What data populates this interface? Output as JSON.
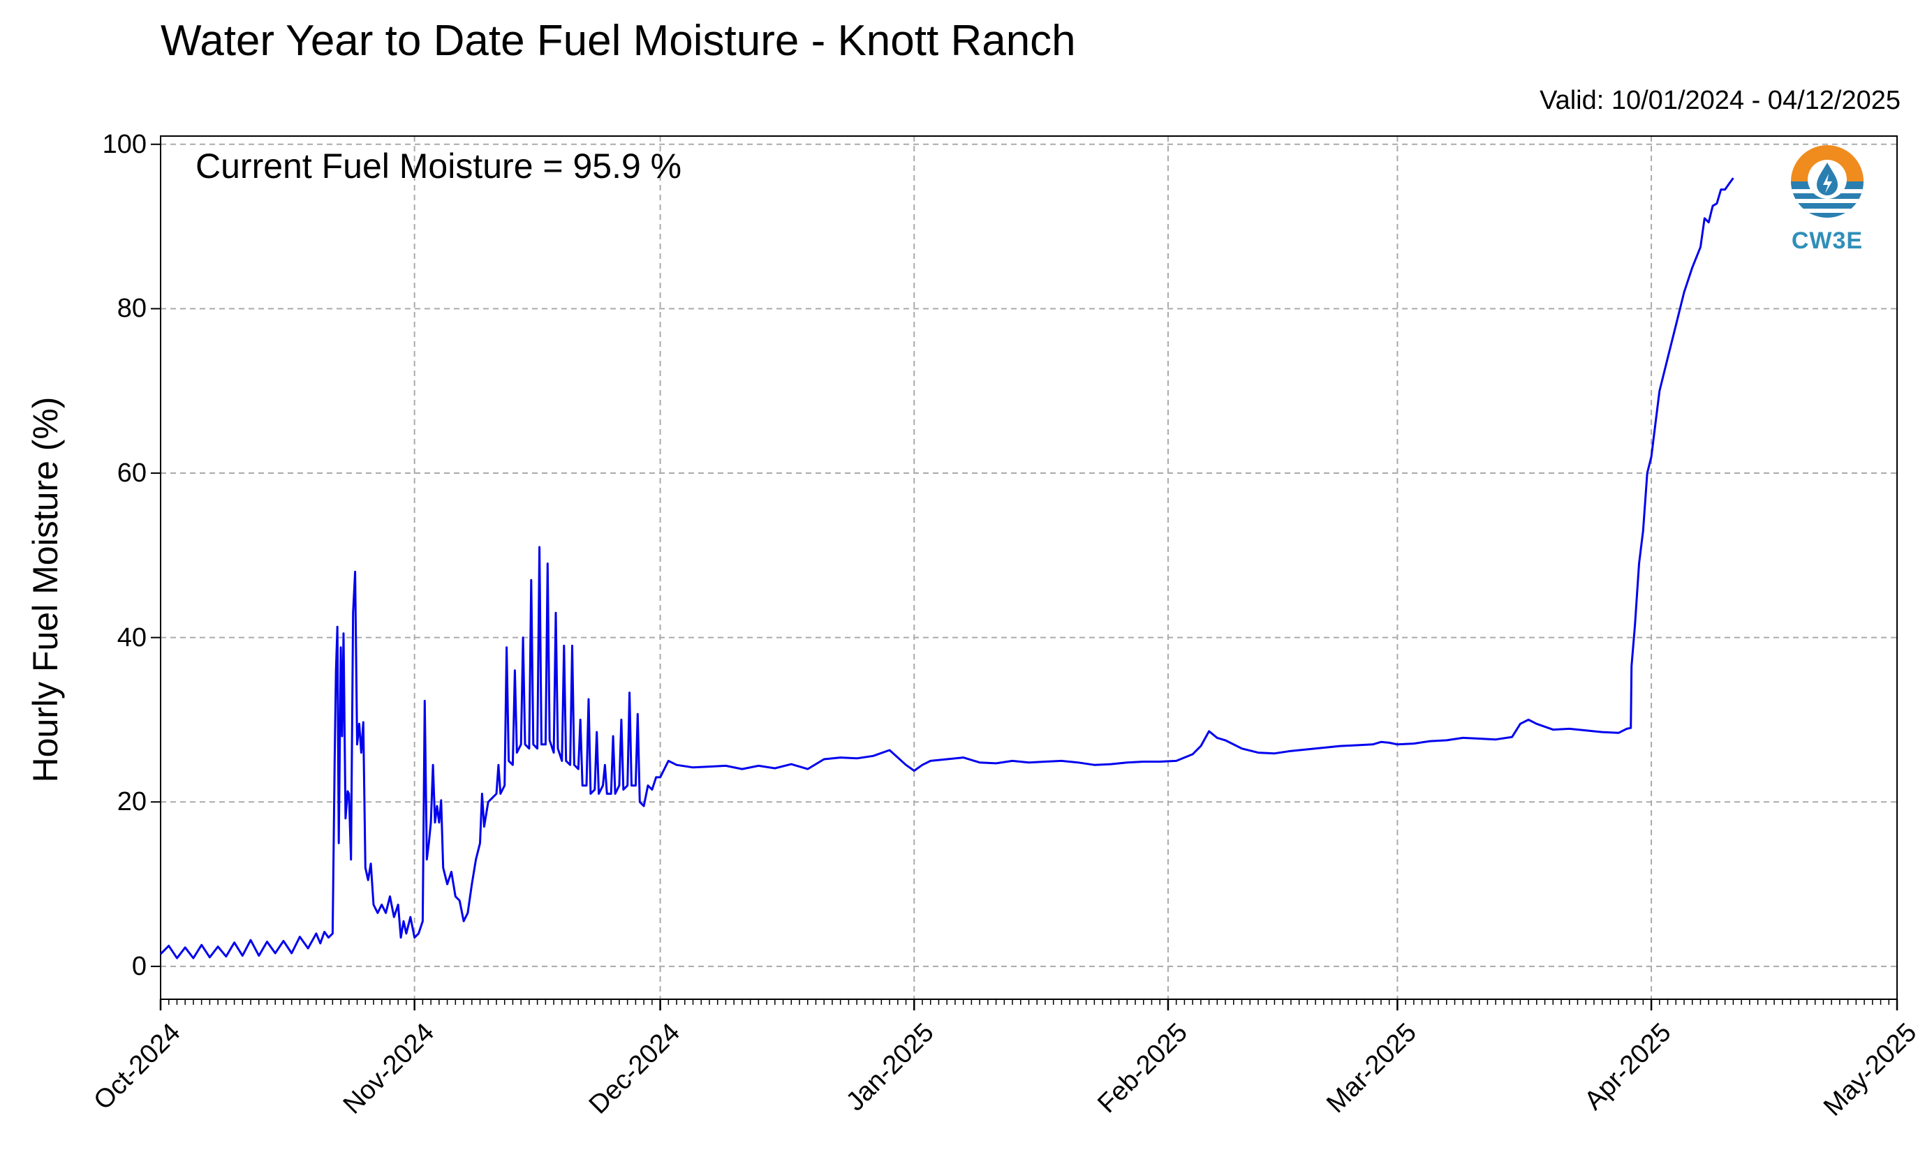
{
  "chart_data": {
    "type": "line",
    "title": "Water Year to Date Fuel Moisture - Knott Ranch",
    "subtitle": "Valid: 10/01/2024 - 04/12/2025",
    "annotation": "Current Fuel Moisture = 95.9 %",
    "xlabel": "",
    "ylabel": "Hourly Fuel Moisture (%)",
    "xlim": [
      "2024-10-01",
      "2025-05-01"
    ],
    "ylim": [
      -4,
      101
    ],
    "yticks": [
      0,
      20,
      40,
      60,
      80,
      100
    ],
    "xticks": [
      {
        "date": "2024-10-01",
        "label": "Oct-2024"
      },
      {
        "date": "2024-11-01",
        "label": "Nov-2024"
      },
      {
        "date": "2024-12-01",
        "label": "Dec-2024"
      },
      {
        "date": "2025-01-01",
        "label": "Jan-2025"
      },
      {
        "date": "2025-02-01",
        "label": "Feb-2025"
      },
      {
        "date": "2025-03-01",
        "label": "Mar-2025"
      },
      {
        "date": "2025-04-01",
        "label": "Apr-2025"
      },
      {
        "date": "2025-05-01",
        "label": "May-2025"
      }
    ],
    "grid": true,
    "line_color": "#0000ee",
    "series": [
      {
        "points": [
          [
            "2024-10-01",
            1.5
          ],
          [
            "2024-10-02",
            2.5
          ],
          [
            "2024-10-03",
            1.0
          ],
          [
            "2024-10-04",
            2.3
          ],
          [
            "2024-10-05",
            1.0
          ],
          [
            "2024-10-06",
            2.6
          ],
          [
            "2024-10-07",
            1.1
          ],
          [
            "2024-10-08",
            2.4
          ],
          [
            "2024-10-09",
            1.2
          ],
          [
            "2024-10-10",
            2.9
          ],
          [
            "2024-10-11",
            1.3
          ],
          [
            "2024-10-12",
            3.2
          ],
          [
            "2024-10-13",
            1.3
          ],
          [
            "2024-10-14",
            3.0
          ],
          [
            "2024-10-15",
            1.6
          ],
          [
            "2024-10-16",
            3.1
          ],
          [
            "2024-10-17",
            1.6
          ],
          [
            "2024-10-18",
            3.6
          ],
          [
            "2024-10-19",
            2.2
          ],
          [
            "2024-10-20",
            4.0
          ],
          [
            "2024-10-20T12",
            2.8
          ],
          [
            "2024-10-21",
            4.2
          ],
          [
            "2024-10-21T12",
            3.5
          ],
          [
            "2024-10-22",
            4.0
          ],
          [
            "2024-10-22T06",
            25
          ],
          [
            "2024-10-22T10",
            36
          ],
          [
            "2024-10-22T14",
            41.3
          ],
          [
            "2024-10-22T18",
            15
          ],
          [
            "2024-10-23",
            38.8
          ],
          [
            "2024-10-23T04",
            28
          ],
          [
            "2024-10-23T08",
            40.5
          ],
          [
            "2024-10-23T14",
            18
          ],
          [
            "2024-10-23T20",
            21.3
          ],
          [
            "2024-10-24",
            21
          ],
          [
            "2024-10-24T06",
            13
          ],
          [
            "2024-10-24T12",
            43
          ],
          [
            "2024-10-24T18",
            48
          ],
          [
            "2024-10-25",
            27
          ],
          [
            "2024-10-25T06",
            29.5
          ],
          [
            "2024-10-25T12",
            26
          ],
          [
            "2024-10-25T18",
            29.7
          ],
          [
            "2024-10-26",
            12
          ],
          [
            "2024-10-26T08",
            10.5
          ],
          [
            "2024-10-26T16",
            12.5
          ],
          [
            "2024-10-27",
            7.5
          ],
          [
            "2024-10-27T12",
            6.5
          ],
          [
            "2024-10-28",
            7.5
          ],
          [
            "2024-10-28T12",
            6.5
          ],
          [
            "2024-10-29",
            8.5
          ],
          [
            "2024-10-29T12",
            6.0
          ],
          [
            "2024-10-30",
            7.5
          ],
          [
            "2024-10-30T08",
            3.5
          ],
          [
            "2024-10-30T16",
            5.5
          ],
          [
            "2024-10-31",
            4.0
          ],
          [
            "2024-10-31T12",
            6.0
          ],
          [
            "2024-11-01",
            3.5
          ],
          [
            "2024-11-01T12",
            4.0
          ],
          [
            "2024-11-02",
            5.5
          ],
          [
            "2024-11-02T06",
            32.3
          ],
          [
            "2024-11-02T12",
            13
          ],
          [
            "2024-11-02T18",
            15
          ],
          [
            "2024-11-03",
            17.5
          ],
          [
            "2024-11-03T06",
            24.5
          ],
          [
            "2024-11-03T12",
            17.5
          ],
          [
            "2024-11-03T18",
            19.5
          ],
          [
            "2024-11-04",
            17.5
          ],
          [
            "2024-11-04T06",
            20.2
          ],
          [
            "2024-11-04T12",
            12
          ],
          [
            "2024-11-05",
            10
          ],
          [
            "2024-11-05T12",
            11.5
          ],
          [
            "2024-11-06",
            8.5
          ],
          [
            "2024-11-06T12",
            8.0
          ],
          [
            "2024-11-07",
            5.5
          ],
          [
            "2024-11-07T12",
            6.5
          ],
          [
            "2024-11-08",
            10
          ],
          [
            "2024-11-08T12",
            13
          ],
          [
            "2024-11-09",
            15
          ],
          [
            "2024-11-09T06",
            21
          ],
          [
            "2024-11-09T12",
            17
          ],
          [
            "2024-11-10",
            20
          ],
          [
            "2024-11-10T12",
            20.5
          ],
          [
            "2024-11-11",
            21
          ],
          [
            "2024-11-11T06",
            24.5
          ],
          [
            "2024-11-11T12",
            21
          ],
          [
            "2024-11-12",
            22
          ],
          [
            "2024-11-12T06",
            38.8
          ],
          [
            "2024-11-12T12",
            25
          ],
          [
            "2024-11-13",
            24.5
          ],
          [
            "2024-11-13T06",
            36
          ],
          [
            "2024-11-13T12",
            26
          ],
          [
            "2024-11-14",
            27
          ],
          [
            "2024-11-14T06",
            40
          ],
          [
            "2024-11-14T12",
            27
          ],
          [
            "2024-11-15",
            26.5
          ],
          [
            "2024-11-15T06",
            47
          ],
          [
            "2024-11-15T12",
            27
          ],
          [
            "2024-11-16",
            26.5
          ],
          [
            "2024-11-16T06",
            51
          ],
          [
            "2024-11-16T12",
            27
          ],
          [
            "2024-11-17",
            27
          ],
          [
            "2024-11-17T06",
            49
          ],
          [
            "2024-11-17T12",
            27.5
          ],
          [
            "2024-11-18",
            26
          ],
          [
            "2024-11-18T06",
            43
          ],
          [
            "2024-11-18T12",
            26.5
          ],
          [
            "2024-11-19",
            25
          ],
          [
            "2024-11-19T06",
            39
          ],
          [
            "2024-11-19T12",
            25
          ],
          [
            "2024-11-20",
            24.5
          ],
          [
            "2024-11-20T06",
            39
          ],
          [
            "2024-11-20T12",
            24.5
          ],
          [
            "2024-11-21",
            24
          ],
          [
            "2024-11-21T06",
            30
          ],
          [
            "2024-11-21T12",
            22
          ],
          [
            "2024-11-22",
            22
          ],
          [
            "2024-11-22T06",
            32.5
          ],
          [
            "2024-11-22T12",
            21
          ],
          [
            "2024-11-23",
            21.5
          ],
          [
            "2024-11-23T06",
            28.5
          ],
          [
            "2024-11-23T12",
            21
          ],
          [
            "2024-11-24",
            22
          ],
          [
            "2024-11-24T06",
            24.5
          ],
          [
            "2024-11-24T12",
            21
          ],
          [
            "2024-11-25",
            21
          ],
          [
            "2024-11-25T06",
            28
          ],
          [
            "2024-11-25T12",
            21
          ],
          [
            "2024-11-26",
            22
          ],
          [
            "2024-11-26T06",
            30
          ],
          [
            "2024-11-26T12",
            21.5
          ],
          [
            "2024-11-27",
            22
          ],
          [
            "2024-11-27T06",
            33.3
          ],
          [
            "2024-11-27T12",
            22
          ],
          [
            "2024-11-28",
            22
          ],
          [
            "2024-11-28T06",
            30.7
          ],
          [
            "2024-11-28T12",
            20
          ],
          [
            "2024-11-29",
            19.5
          ],
          [
            "2024-11-29T12",
            22
          ],
          [
            "2024-11-30",
            21.5
          ],
          [
            "2024-11-30T12",
            23
          ],
          [
            "2024-12-01",
            23
          ],
          [
            "2024-12-02",
            25
          ],
          [
            "2024-12-03",
            24.5
          ],
          [
            "2024-12-05",
            24.2
          ],
          [
            "2024-12-07",
            24.3
          ],
          [
            "2024-12-09",
            24.4
          ],
          [
            "2024-12-11",
            24.0
          ],
          [
            "2024-12-13",
            24.4
          ],
          [
            "2024-12-15",
            24.1
          ],
          [
            "2024-12-17",
            24.6
          ],
          [
            "2024-12-19",
            24.0
          ],
          [
            "2024-12-21",
            25.2
          ],
          [
            "2024-12-23",
            25.4
          ],
          [
            "2024-12-25",
            25.3
          ],
          [
            "2024-12-27",
            25.6
          ],
          [
            "2024-12-29",
            26.3
          ],
          [
            "2024-12-31",
            24.5
          ],
          [
            "2025-01-01",
            23.8
          ],
          [
            "2025-01-02",
            24.5
          ],
          [
            "2025-01-03",
            25.0
          ],
          [
            "2025-01-05",
            25.2
          ],
          [
            "2025-01-07",
            25.4
          ],
          [
            "2025-01-09",
            24.8
          ],
          [
            "2025-01-11",
            24.7
          ],
          [
            "2025-01-13",
            25.0
          ],
          [
            "2025-01-15",
            24.8
          ],
          [
            "2025-01-17",
            24.9
          ],
          [
            "2025-01-19",
            25.0
          ],
          [
            "2025-01-21",
            24.8
          ],
          [
            "2025-01-23",
            24.5
          ],
          [
            "2025-01-25",
            24.6
          ],
          [
            "2025-01-27",
            24.8
          ],
          [
            "2025-01-29",
            24.9
          ],
          [
            "2025-01-31",
            24.9
          ],
          [
            "2025-02-02",
            25.0
          ],
          [
            "2025-02-04",
            25.8
          ],
          [
            "2025-02-05",
            26.8
          ],
          [
            "2025-02-06",
            28.6
          ],
          [
            "2025-02-07",
            27.8
          ],
          [
            "2025-02-08",
            27.5
          ],
          [
            "2025-02-10",
            26.5
          ],
          [
            "2025-02-12",
            26.0
          ],
          [
            "2025-02-14",
            25.9
          ],
          [
            "2025-02-16",
            26.2
          ],
          [
            "2025-02-18",
            26.4
          ],
          [
            "2025-02-20",
            26.6
          ],
          [
            "2025-02-22",
            26.8
          ],
          [
            "2025-02-24",
            26.9
          ],
          [
            "2025-02-26",
            27.0
          ],
          [
            "2025-02-27",
            27.3
          ],
          [
            "2025-02-28",
            27.2
          ],
          [
            "2025-03-01",
            27.0
          ],
          [
            "2025-03-03",
            27.1
          ],
          [
            "2025-03-05",
            27.4
          ],
          [
            "2025-03-07",
            27.5
          ],
          [
            "2025-03-09",
            27.8
          ],
          [
            "2025-03-11",
            27.7
          ],
          [
            "2025-03-13",
            27.6
          ],
          [
            "2025-03-15",
            27.9
          ],
          [
            "2025-03-16",
            29.5
          ],
          [
            "2025-03-17",
            30.0
          ],
          [
            "2025-03-18",
            29.5
          ],
          [
            "2025-03-20",
            28.8
          ],
          [
            "2025-03-22",
            28.9
          ],
          [
            "2025-03-24",
            28.7
          ],
          [
            "2025-03-26",
            28.5
          ],
          [
            "2025-03-28",
            28.4
          ],
          [
            "2025-03-29",
            28.9
          ],
          [
            "2025-03-29T12",
            29.0
          ],
          [
            "2025-03-29T14",
            36.5
          ],
          [
            "2025-03-30",
            41.5
          ],
          [
            "2025-03-30T12",
            49
          ],
          [
            "2025-03-31",
            53
          ],
          [
            "2025-03-31T12",
            60
          ],
          [
            "2025-04-01",
            62
          ],
          [
            "2025-04-01T12",
            66
          ],
          [
            "2025-04-02",
            70
          ],
          [
            "2025-04-03",
            74
          ],
          [
            "2025-04-04",
            78
          ],
          [
            "2025-04-05",
            82
          ],
          [
            "2025-04-06",
            85
          ],
          [
            "2025-04-07",
            87.5
          ],
          [
            "2025-04-07T12",
            91
          ],
          [
            "2025-04-08",
            90.5
          ],
          [
            "2025-04-08T12",
            92.5
          ],
          [
            "2025-04-09",
            92.8
          ],
          [
            "2025-04-09T12",
            94.5
          ],
          [
            "2025-04-10",
            94.5
          ],
          [
            "2025-04-10T12",
            95.2
          ],
          [
            "2025-04-11",
            95.9
          ]
        ]
      }
    ]
  },
  "logo": {
    "text": "CW3E",
    "name": "cw3e-logo"
  }
}
